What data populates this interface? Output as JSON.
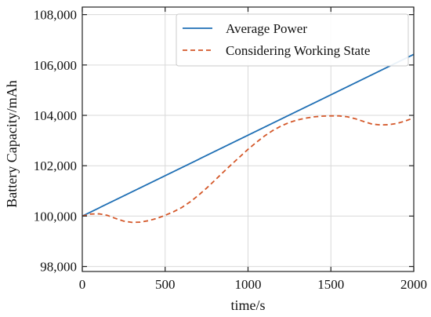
{
  "chart_data": {
    "type": "line",
    "title": "",
    "xlabel": "time/s",
    "ylabel": "Battery Capacity/mAh",
    "xlim": [
      0,
      2000
    ],
    "ylim": [
      97800,
      108300
    ],
    "xticks": [
      0,
      500,
      1000,
      1500,
      2000
    ],
    "xtick_labels": [
      "0",
      "500",
      "1000",
      "1500",
      "2000"
    ],
    "yticks": [
      98000,
      100000,
      102000,
      104000,
      106000,
      108000
    ],
    "ytick_labels": [
      "98,000",
      "100,000",
      "102,000",
      "104,000",
      "106,000",
      "108,000"
    ],
    "grid": true,
    "legend_position": "top-right",
    "series": [
      {
        "name": "Average Power",
        "style": "solid",
        "color": "#1f6fb4",
        "x": [
          0,
          2000
        ],
        "y": [
          100000,
          106420
        ]
      },
      {
        "name": "Considering Working State",
        "style": "dashed",
        "color": "#d4582a",
        "x": [
          0,
          50,
          100,
          150,
          200,
          250,
          300,
          350,
          400,
          450,
          500,
          550,
          600,
          650,
          700,
          750,
          800,
          850,
          900,
          950,
          1000,
          1050,
          1100,
          1150,
          1200,
          1250,
          1300,
          1350,
          1400,
          1450,
          1500,
          1550,
          1600,
          1650,
          1700,
          1750,
          1800,
          1850,
          1900,
          1950,
          2000
        ],
        "y": [
          100000,
          100080,
          100090,
          100030,
          99910,
          99800,
          99750,
          99760,
          99820,
          99910,
          100030,
          100170,
          100340,
          100560,
          100820,
          101110,
          101420,
          101740,
          102050,
          102350,
          102650,
          102930,
          103180,
          103400,
          103580,
          103720,
          103820,
          103890,
          103940,
          103970,
          103980,
          103980,
          103940,
          103860,
          103750,
          103650,
          103620,
          103630,
          103680,
          103780,
          103900
        ]
      }
    ]
  }
}
